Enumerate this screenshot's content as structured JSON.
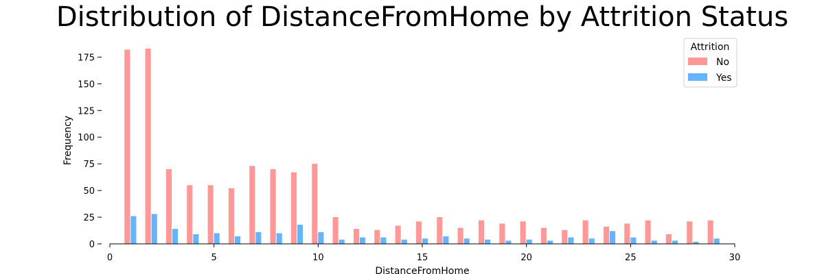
{
  "chart_data": {
    "type": "bar",
    "title": "Distribution of DistanceFromHome by Attrition Status",
    "xlabel": "DistanceFromHome",
    "ylabel": "Frequency",
    "xlim": [
      0,
      30
    ],
    "ylim": [
      0,
      190
    ],
    "xticks": [
      0,
      5,
      10,
      15,
      20,
      25,
      30
    ],
    "yticks": [
      0,
      25,
      50,
      75,
      100,
      125,
      150,
      175
    ],
    "grid": false,
    "legend": {
      "title": "Attrition",
      "placement": "top-right"
    },
    "x": [
      1,
      2,
      3,
      4,
      5,
      6,
      7,
      8,
      9,
      10,
      11,
      12,
      13,
      14,
      15,
      16,
      17,
      18,
      19,
      20,
      21,
      22,
      23,
      24,
      25,
      26,
      27,
      28,
      29
    ],
    "series": [
      {
        "name": "No",
        "color": "#ff9896",
        "values": [
          182,
          183,
          70,
          55,
          55,
          52,
          73,
          70,
          67,
          75,
          25,
          14,
          13,
          17,
          21,
          25,
          15,
          22,
          19,
          21,
          15,
          13,
          22,
          16,
          19,
          22,
          9,
          21,
          22
        ]
      },
      {
        "name": "Yes",
        "color": "#66b3ff",
        "values": [
          26,
          28,
          14,
          9,
          10,
          7,
          11,
          10,
          18,
          11,
          4,
          6,
          6,
          4,
          5,
          7,
          5,
          4,
          3,
          4,
          3,
          6,
          5,
          12,
          6,
          3,
          3,
          2,
          5
        ]
      }
    ]
  }
}
